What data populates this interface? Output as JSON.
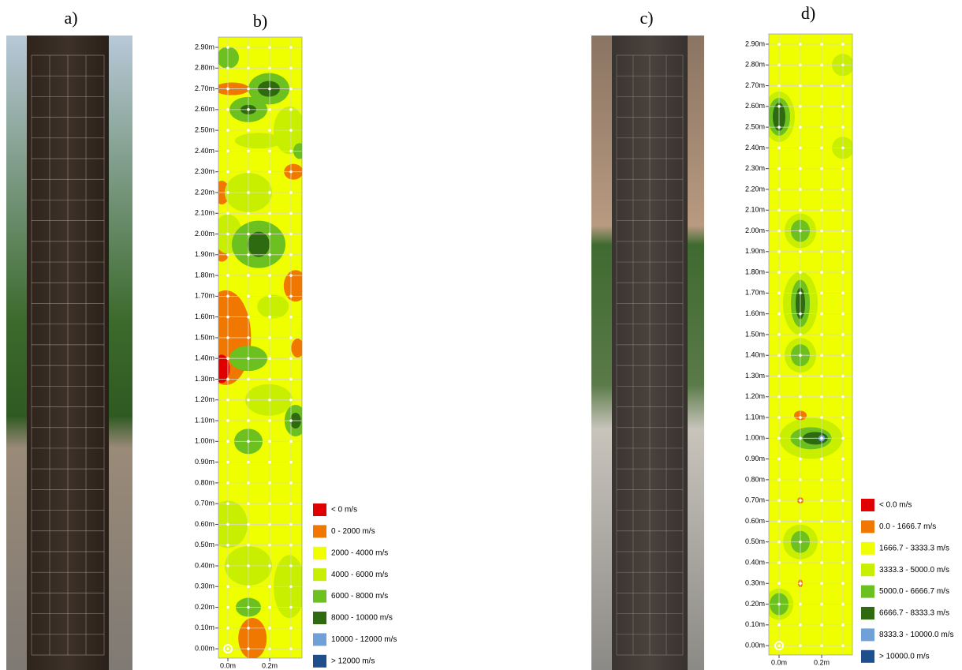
{
  "panels": [
    {
      "label": "a)"
    },
    {
      "label": "b)",
      "yticks": [
        "2.90m",
        "2.80m",
        "2.70m",
        "2.60m",
        "2.50m",
        "2.40m",
        "2.30m",
        "2.20m",
        "2.10m",
        "2.00m",
        "1.90m",
        "1.80m",
        "1.70m",
        "1.60m",
        "1.50m",
        "1.40m",
        "1.30m",
        "1.20m",
        "1.10m",
        "1.00m",
        "0.90m",
        "0.80m",
        "0.70m",
        "0.60m",
        "0.50m",
        "0.40m",
        "0.30m",
        "0.20m",
        "0.10m",
        "0.00m"
      ],
      "xticks": [
        "0.0m",
        "0.2m"
      ],
      "legend": [
        {
          "label": "< 0 m/s",
          "color": "#e00000"
        },
        {
          "label": "0 - 2000 m/s",
          "color": "#f07800"
        },
        {
          "label": "2000 - 4000 m/s",
          "color": "#f0ff00"
        },
        {
          "label": "4000 - 6000 m/s",
          "color": "#c8ee00"
        },
        {
          "label": "6000 - 8000 m/s",
          "color": "#6cc020"
        },
        {
          "label": "8000 - 10000 m/s",
          "color": "#2e6a10"
        },
        {
          "label": "10000 - 12000 m/s",
          "color": "#6fa0d8"
        },
        {
          "label": "> 12000 m/s",
          "color": "#1f4e8c"
        }
      ]
    },
    {
      "label": "c)"
    },
    {
      "label": "d)",
      "yticks": [
        "2.90m",
        "2.80m",
        "2.70m",
        "2.60m",
        "2.50m",
        "2.40m",
        "2.30m",
        "2.20m",
        "2.10m",
        "2.00m",
        "1.90m",
        "1.80m",
        "1.70m",
        "1.60m",
        "1.50m",
        "1.40m",
        "1.30m",
        "1.20m",
        "1.10m",
        "1.00m",
        "0.90m",
        "0.80m",
        "0.70m",
        "0.60m",
        "0.50m",
        "0.40m",
        "0.30m",
        "0.20m",
        "0.10m",
        "0.00m"
      ],
      "xticks": [
        "0.0m",
        "0.2m"
      ],
      "legend": [
        {
          "label": "< 0.0 m/s",
          "color": "#e00000"
        },
        {
          "label": "0.0 - 1666.7 m/s",
          "color": "#f07800"
        },
        {
          "label": "1666.7 - 3333.3 m/s",
          "color": "#f0ff00"
        },
        {
          "label": "3333.3 - 5000.0 m/s",
          "color": "#c8ee00"
        },
        {
          "label": "5000.0 - 6666.7 m/s",
          "color": "#6cc020"
        },
        {
          "label": "6666.7 - 8333.3 m/s",
          "color": "#2e6a10"
        },
        {
          "label": "8333.3 - 10000.0 m/s",
          "color": "#6fa0d8"
        },
        {
          "label": "> 10000.0 m/s",
          "color": "#1f4e8c"
        }
      ]
    }
  ]
}
